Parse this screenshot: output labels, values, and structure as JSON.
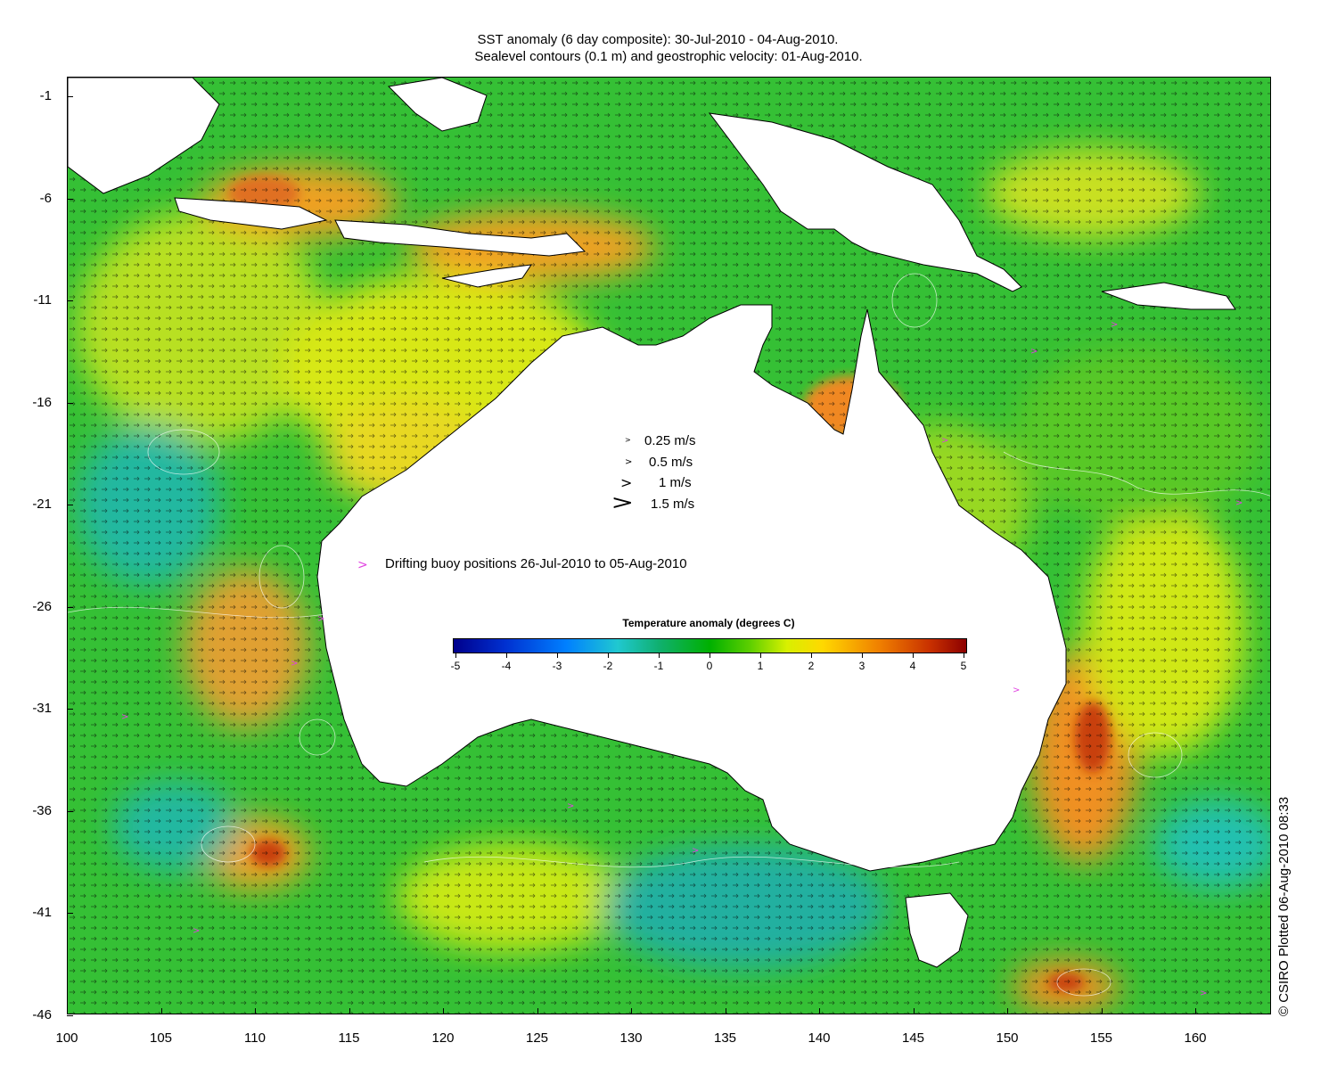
{
  "header": {
    "title_line1": "SST anomaly (6 day composite): 30-Jul-2010 - 04-Aug-2010.",
    "title_line2": "Sealevel contours (0.1 m) and geostrophic velocity: 01-Aug-2010."
  },
  "axes": {
    "y_labels": [
      "-1",
      "-6",
      "-11",
      "-16",
      "-21",
      "-26",
      "-31",
      "-36",
      "-41",
      "-46"
    ],
    "x_labels": [
      "100",
      "105",
      "110",
      "115",
      "120",
      "125",
      "130",
      "135",
      "140",
      "145",
      "150",
      "155",
      "160"
    ]
  },
  "velocity_legend": [
    {
      "label": "0.25 m/s"
    },
    {
      "label": "0.5 m/s"
    },
    {
      "label": "1 m/s"
    },
    {
      "label": "1.5 m/s"
    }
  ],
  "buoy_legend": {
    "symbol": ">",
    "label": "Drifting buoy positions 26-Jul-2010 to 05-Aug-2010",
    "color": "#e040e0"
  },
  "colorbar": {
    "title": "Temperature anomaly (degrees C)",
    "ticks": [
      "-5",
      "-4",
      "-3",
      "-2",
      "-1",
      "0",
      "1",
      "2",
      "3",
      "4",
      "5"
    ]
  },
  "credit": "© CSIRO Plotted 06-Aug-2010 08:33",
  "colors": {
    "land": "#ffffff",
    "ocean_base": "#2fbf2f",
    "warm_anomaly": "#f0a020",
    "cool_anomaly": "#20c0b0",
    "buoy": "#e040e0"
  }
}
